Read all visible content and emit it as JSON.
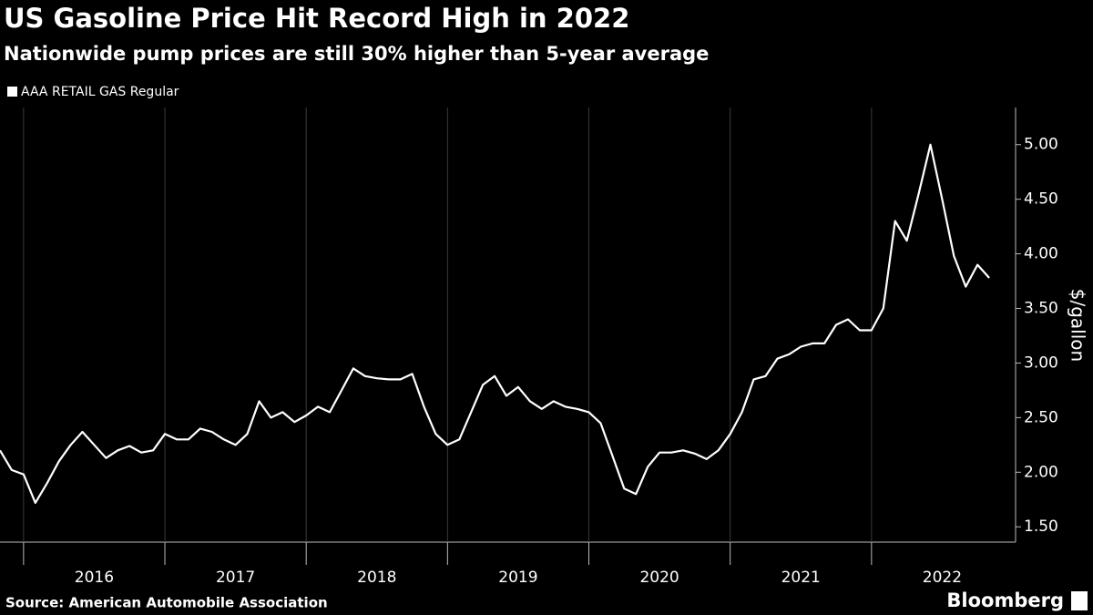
{
  "chart_data": {
    "type": "line",
    "title": "US Gasoline Price Hit Record High in 2022",
    "subtitle": "Nationwide pump prices are still 30% higher than 5-year average",
    "y_label": "$/gallon",
    "source": "Source: American Automobile Association",
    "brand": "Bloomberg",
    "grid": true,
    "x": [
      "2015-11",
      "2015-12",
      "2016-01",
      "2016-02",
      "2016-03",
      "2016-04",
      "2016-05",
      "2016-06",
      "2016-07",
      "2016-08",
      "2016-09",
      "2016-10",
      "2016-11",
      "2016-12",
      "2017-01",
      "2017-02",
      "2017-03",
      "2017-04",
      "2017-05",
      "2017-06",
      "2017-07",
      "2017-08",
      "2017-09",
      "2017-10",
      "2017-11",
      "2017-12",
      "2018-01",
      "2018-02",
      "2018-03",
      "2018-04",
      "2018-05",
      "2018-06",
      "2018-07",
      "2018-08",
      "2018-09",
      "2018-10",
      "2018-11",
      "2018-12",
      "2019-01",
      "2019-02",
      "2019-03",
      "2019-04",
      "2019-05",
      "2019-06",
      "2019-07",
      "2019-08",
      "2019-09",
      "2019-10",
      "2019-11",
      "2019-12",
      "2020-01",
      "2020-02",
      "2020-03",
      "2020-04",
      "2020-05",
      "2020-06",
      "2020-07",
      "2020-08",
      "2020-09",
      "2020-10",
      "2020-11",
      "2020-12",
      "2021-01",
      "2021-02",
      "2021-03",
      "2021-04",
      "2021-05",
      "2021-06",
      "2021-07",
      "2021-08",
      "2021-09",
      "2021-10",
      "2021-11",
      "2021-12",
      "2022-01",
      "2022-02",
      "2022-03",
      "2022-04",
      "2022-05",
      "2022-06",
      "2022-07",
      "2022-08",
      "2022-09",
      "2022-10",
      "2022-11"
    ],
    "series": [
      {
        "name": "AAA RETAIL GAS  Regular",
        "color": "#ffffff",
        "values": [
          2.2,
          2.02,
          1.98,
          1.72,
          1.9,
          2.1,
          2.25,
          2.37,
          2.25,
          2.13,
          2.2,
          2.24,
          2.18,
          2.2,
          2.35,
          2.3,
          2.3,
          2.4,
          2.37,
          2.3,
          2.25,
          2.35,
          2.65,
          2.5,
          2.55,
          2.46,
          2.52,
          2.6,
          2.55,
          2.75,
          2.95,
          2.88,
          2.86,
          2.85,
          2.85,
          2.9,
          2.6,
          2.35,
          2.25,
          2.3,
          2.55,
          2.8,
          2.88,
          2.7,
          2.78,
          2.65,
          2.58,
          2.65,
          2.6,
          2.58,
          2.55,
          2.45,
          2.15,
          1.85,
          1.8,
          2.05,
          2.18,
          2.18,
          2.2,
          2.17,
          2.12,
          2.2,
          2.35,
          2.55,
          2.85,
          2.88,
          3.04,
          3.08,
          3.15,
          3.18,
          3.18,
          3.35,
          3.4,
          3.3,
          3.3,
          3.5,
          4.3,
          4.12,
          4.55,
          5.0,
          4.5,
          3.98,
          3.7,
          3.9,
          3.78
        ]
      }
    ],
    "xlim": [
      "2015-11",
      "2023-01"
    ],
    "xticks": [
      "2016",
      "2017",
      "2018",
      "2019",
      "2020",
      "2021",
      "2022"
    ],
    "ylim": [
      1.36,
      5.34
    ],
    "yticks": [
      {
        "value": 1.5,
        "label": "1.50"
      },
      {
        "value": 2,
        "label": "2.00"
      },
      {
        "value": 2.5,
        "label": "2.50"
      },
      {
        "value": 3,
        "label": "3.00"
      },
      {
        "value": 3.5,
        "label": "3.50"
      },
      {
        "value": 4,
        "label": "4.00"
      },
      {
        "value": 4.5,
        "label": "4.50"
      },
      {
        "value": 5,
        "label": "5.00"
      }
    ]
  }
}
